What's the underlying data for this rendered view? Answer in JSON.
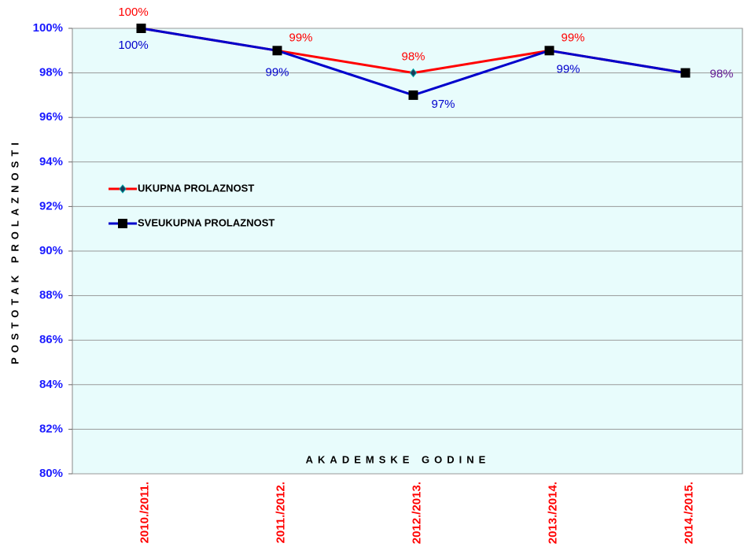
{
  "chart_data": {
    "type": "line",
    "y_label": "POSTOTAK PROLAZNOSTI",
    "x_label": "AKADEMSKE GODINE",
    "categories": [
      "2010./2011.",
      "2011./2012.",
      "2012./2013.",
      "2013./2014.",
      "2014./2015."
    ],
    "series": [
      {
        "name": "UKUPNA PROLAZNOST",
        "color": "#ff0000",
        "marker": "diamond",
        "values": [
          100,
          99,
          98,
          99,
          98
        ],
        "value_labels": [
          "100%",
          "99%",
          "98%",
          "99%",
          "98%"
        ]
      },
      {
        "name": "SVEUKUPNA PROLAZNOST",
        "color": "#0000cc",
        "marker": "square",
        "values": [
          100,
          99,
          97,
          99,
          98
        ],
        "value_labels": [
          "100%",
          "99%",
          "97%",
          "99%",
          "98%"
        ]
      }
    ],
    "ylim": [
      80,
      100
    ],
    "yticks": [
      {
        "value": 80,
        "label": "80%"
      },
      {
        "value": 82,
        "label": "82%"
      },
      {
        "value": 84,
        "label": "84%"
      },
      {
        "value": 86,
        "label": "86%"
      },
      {
        "value": 88,
        "label": "88%"
      },
      {
        "value": 90,
        "label": "90%"
      },
      {
        "value": 92,
        "label": "92%"
      },
      {
        "value": 94,
        "label": "94%"
      },
      {
        "value": 96,
        "label": "96%"
      },
      {
        "value": 98,
        "label": "98%"
      },
      {
        "value": 100,
        "label": "100%"
      }
    ],
    "grid": true,
    "legend": "left"
  }
}
